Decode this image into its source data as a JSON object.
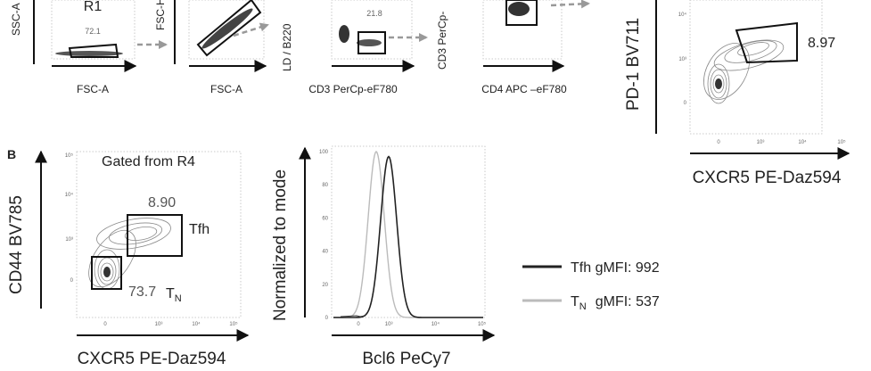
{
  "panelA": {
    "plot1": {
      "ylabel": "SSC-A",
      "xlabel": "FSC-A",
      "gate_name": "R1",
      "gate_value": "72.1"
    },
    "plot2": {
      "ylabel": "FSC-H",
      "xlabel": "FSC-A"
    },
    "plot3": {
      "ylabel": "LD / B220",
      "xlabel": "CD3 PerCp-eF780",
      "gate_value": "21.8"
    },
    "plot4": {
      "ylabel": "CD3 PerCp-",
      "xlabel": "CD4 APC –eF780"
    },
    "plot5": {
      "ylabel": "PD-1 BV711",
      "xlabel": "CXCR5 PE-Daz594",
      "gate_value": "8.97",
      "yticks": [
        "10⁴",
        "10³",
        "0"
      ],
      "xticks": [
        "0",
        "10³",
        "10⁴",
        "10⁵"
      ]
    }
  },
  "panelB": {
    "label": "B",
    "contour": {
      "title": "Gated from R4",
      "ylabel": "CD44 BV785",
      "xlabel": "CXCR5 PE-Daz594",
      "tfh_value": "8.90",
      "tfh_label": "Tfh",
      "tn_value": "73.7",
      "tn_label": "T",
      "tn_sub": "N",
      "yticks": [
        "10⁵",
        "10⁴",
        "10³",
        "0"
      ],
      "xticks": [
        "0",
        "10³",
        "10⁴",
        "10⁵"
      ]
    },
    "histogram": {
      "ylabel": "Normalized to mode",
      "xlabel": "Bcl6 PeCy7",
      "yticks": [
        "100",
        "80",
        "60",
        "40",
        "20",
        "0"
      ],
      "xticks": [
        "0",
        "10³",
        "10⁴",
        "10⁵"
      ]
    },
    "legend": {
      "tfh": "Tfh gMFI: 992",
      "tn_main": "T",
      "tn_sub": "N",
      "tn_rest": "gMFI: 537",
      "tfh_color": "#222222",
      "tn_color": "#bbbbbb"
    }
  },
  "chart_data": {
    "type": "line",
    "xlabel": "Bcl6 PeCy7",
    "ylabel": "Normalized to mode",
    "ylim": [
      0,
      100
    ],
    "xscale": "biexponential",
    "legend_position": "right",
    "series": [
      {
        "name": "Tfh gMFI: 992",
        "peak_x": 992,
        "peak_y": 97,
        "color": "#222222"
      },
      {
        "name": "TN gMFI: 537",
        "peak_x": 537,
        "peak_y": 100,
        "color": "#bbbbbb"
      }
    ]
  }
}
